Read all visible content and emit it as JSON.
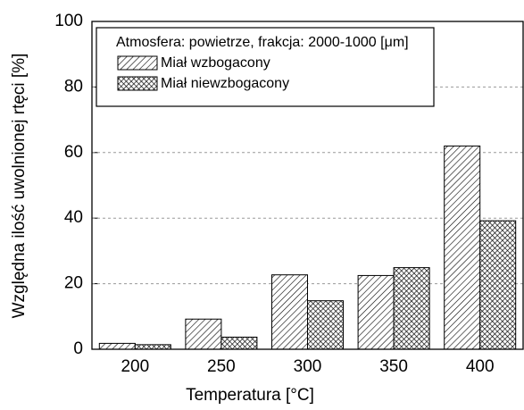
{
  "chart_data": {
    "type": "bar",
    "x_label": "Temperatura [°C]",
    "y_label": "Względna ilość uwolnionej rtęci [%]",
    "legend_title": "Atmosfera: powietrze, frakcja: 2000-1000 [μm]",
    "categories": [
      "200",
      "250",
      "300",
      "350",
      "400"
    ],
    "series": [
      {
        "name": "Miał wzbogacony",
        "color": "#000000",
        "pattern": "hatch",
        "values": [
          1.8,
          9.2,
          22.7,
          22.5,
          62
        ]
      },
      {
        "name": "Miał niewzbogacony",
        "color": "#000000",
        "pattern": "crosshatch",
        "values": [
          1.4,
          3.7,
          14.8,
          24.9,
          39.2
        ]
      }
    ],
    "ylim": [
      0,
      100
    ],
    "yticks": [
      0,
      20,
      40,
      60,
      80,
      100
    ],
    "grid": true,
    "legend": "upper left"
  }
}
